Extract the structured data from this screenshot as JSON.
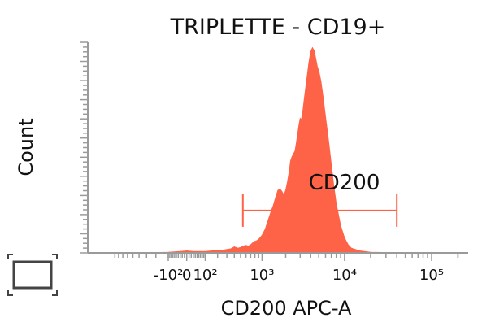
{
  "chart_data": {
    "type": "area",
    "title": "TRIPLETTE - CD19+",
    "xlabel": "CD200 APC-A",
    "ylabel": "Count",
    "x_scale": "biexponential",
    "x_ticks": [
      {
        "value": -100,
        "label": "-10²"
      },
      {
        "value": 0,
        "label": "0"
      },
      {
        "value": 100,
        "label": "10²"
      },
      {
        "value": 1000,
        "label": "10³"
      },
      {
        "value": 10000,
        "label": "10⁴"
      },
      {
        "value": 100000,
        "label": "10⁵"
      }
    ],
    "fill_color": "#ff6347",
    "series": [
      {
        "x": [
          -1000,
          -300,
          -100,
          -30,
          0,
          30,
          60,
          100,
          150,
          200,
          250,
          300,
          350,
          400,
          450,
          500,
          550,
          600,
          650,
          700,
          750,
          800,
          850,
          900,
          950,
          1000,
          1100,
          1200,
          1300,
          1400,
          1500,
          1600,
          1700,
          1800,
          1900,
          2000,
          2100,
          2200,
          2300,
          2400,
          2500,
          2600,
          2700,
          2800,
          2900,
          3000,
          3100,
          3200,
          3400,
          3600,
          3800,
          4000,
          4200,
          4400,
          4600,
          4800,
          5000,
          5300,
          5600,
          6000,
          6500,
          7000,
          7500,
          8000,
          9000,
          10000,
          11000,
          12000,
          15000,
          20000,
          50000,
          200000
        ],
        "y": [
          0,
          0,
          1,
          2,
          3,
          2,
          2,
          2,
          3,
          3,
          4,
          5,
          6,
          9,
          7,
          8,
          10,
          11,
          10,
          12,
          15,
          17,
          18,
          20,
          23,
          26,
          35,
          48,
          60,
          70,
          82,
          92,
          94,
          90,
          85,
          92,
          104,
          118,
          136,
          142,
          146,
          150,
          162,
          175,
          188,
          198,
          196,
          205,
          232,
          255,
          278,
          296,
          302,
          298,
          286,
          274,
          268,
          252,
          230,
          200,
          165,
          130,
          98,
          72,
          40,
          22,
          12,
          7,
          3,
          1,
          0,
          0
        ]
      }
    ],
    "y_max": 310,
    "gate": {
      "label": "CD200",
      "x_start": 540,
      "x_end": 40000,
      "height": 60
    }
  }
}
